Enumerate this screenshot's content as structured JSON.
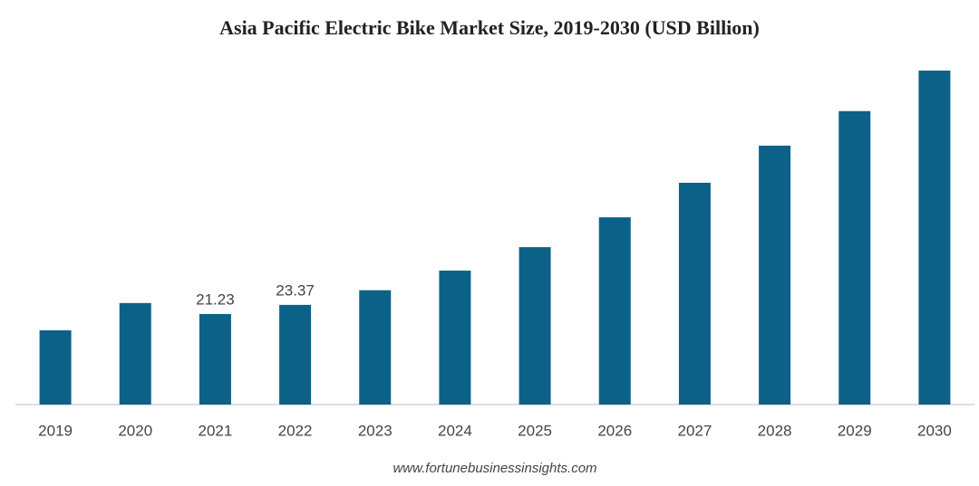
{
  "chart_data": {
    "type": "bar",
    "title": "Asia Pacific Electric Bike Market Size, 2019-2030 (USD Billion)",
    "categories": [
      "2019",
      "2020",
      "2021",
      "2022",
      "2023",
      "2024",
      "2025",
      "2026",
      "2027",
      "2028",
      "2029",
      "2030"
    ],
    "values": [
      17.4,
      23.8,
      21.23,
      23.37,
      26.8,
      31.4,
      36.9,
      43.9,
      52.0,
      60.7,
      68.8,
      78.3
    ],
    "value_labels": [
      null,
      null,
      "21.23",
      "23.37",
      null,
      null,
      null,
      null,
      null,
      null,
      null,
      null
    ],
    "color": "#0b6188",
    "ylim": [
      0,
      80
    ],
    "source": "www.fortunebusinessinsights.com"
  }
}
